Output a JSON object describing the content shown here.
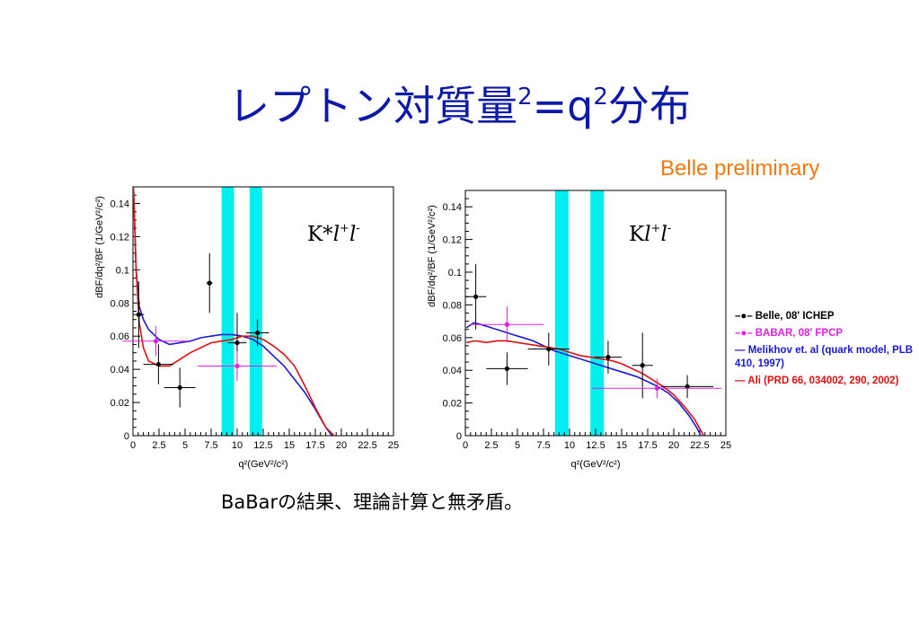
{
  "slide": {
    "title_main": "レプトン対質量",
    "title_sup1": "2",
    "title_eq": "=q",
    "title_sup2": "2",
    "title_tail": "分布",
    "preliminary": "Belle preliminary",
    "caption": "BaBarの結果、理論計算と無矛盾。"
  },
  "legend": [
    {
      "label": "Belle, 08' ICHEP",
      "color": "#000000",
      "marker": "dot"
    },
    {
      "label": "BABAR, 08' FPCP",
      "color": "#e020e0",
      "marker": "dot"
    },
    {
      "label": "Melikhov et. al (quark model, PLB 410, 1997)",
      "color": "#1a1ad0",
      "marker": "line"
    },
    {
      "label": "Ali (PRD 66, 034002, 290, 2002)",
      "color": "#e01010",
      "marker": "line"
    }
  ],
  "chart_data": [
    {
      "type": "scatter",
      "label_main": "K*",
      "label_l1": "l",
      "label_sup1": "+",
      "label_l2": "l",
      "label_sup2": "-",
      "xlabel": "q²(GeV²/c²)",
      "ylabel": "dBF/dq²/BF (1/GeV²/c²)",
      "xlim": [
        0,
        25
      ],
      "ylim": [
        0,
        0.15
      ],
      "xticks": [
        "0",
        "2.5",
        "5",
        "7.5",
        "10",
        "12.5",
        "15",
        "17.5",
        "20",
        "22.5",
        "25"
      ],
      "yticks": [
        "0",
        "0.02",
        "0.04",
        "0.06",
        "0.08",
        "0.1",
        "0.12",
        "0.14"
      ],
      "vetoes": [
        [
          8.5,
          9.7
        ],
        [
          11.2,
          12.4
        ]
      ],
      "series": [
        {
          "name": "Belle, 08' ICHEP",
          "color": "#000000",
          "points": [
            [
              0.55,
              0.073,
              0.5,
              0.02
            ],
            [
              2.45,
              0.043,
              1.45,
              0.012
            ],
            [
              4.5,
              0.029,
              1.5,
              0.012
            ],
            [
              7.35,
              0.092,
              0.3,
              0.018
            ],
            [
              10.0,
              0.056,
              0.9,
              0.018
            ],
            [
              11.95,
              0.062,
              1.1,
              0.008
            ]
          ]
        },
        {
          "name": "BABAR, 08' FPCP",
          "color": "#e020e0",
          "points": [
            [
              2.2,
              0.057,
              3.2,
              0.009
            ],
            [
              10.0,
              0.042,
              3.8,
              0.009
            ]
          ]
        }
      ],
      "curves": [
        {
          "name": "Melikhov",
          "color": "#1a1ad0",
          "points": [
            [
              0.05,
              0.16
            ],
            [
              0.3,
              0.1
            ],
            [
              0.6,
              0.078
            ],
            [
              1,
              0.07
            ],
            [
              1.5,
              0.064
            ],
            [
              2.5,
              0.058
            ],
            [
              3.5,
              0.055
            ],
            [
              4.5,
              0.056
            ],
            [
              5.5,
              0.057
            ],
            [
              6.5,
              0.059
            ],
            [
              7.5,
              0.06
            ],
            [
              8.5,
              0.061
            ],
            [
              9.5,
              0.061
            ],
            [
              10.5,
              0.06
            ],
            [
              11.5,
              0.058
            ],
            [
              12.5,
              0.054
            ],
            [
              13.5,
              0.048
            ],
            [
              14.5,
              0.042
            ],
            [
              15.5,
              0.034
            ],
            [
              16.5,
              0.026
            ],
            [
              17.5,
              0.016
            ],
            [
              18.5,
              0.005
            ],
            [
              19.1,
              0.0
            ]
          ]
        },
        {
          "name": "Ali",
          "color": "#e01010",
          "points": [
            [
              0.05,
              0.16
            ],
            [
              0.3,
              0.1
            ],
            [
              0.6,
              0.068
            ],
            [
              1,
              0.053
            ],
            [
              1.5,
              0.045
            ],
            [
              2.5,
              0.042
            ],
            [
              3.5,
              0.042
            ],
            [
              4.5,
              0.046
            ],
            [
              5.5,
              0.05
            ],
            [
              6.5,
              0.053
            ],
            [
              7.5,
              0.056
            ],
            [
              8.5,
              0.057
            ],
            [
              9.5,
              0.058
            ],
            [
              10.5,
              0.06
            ],
            [
              11.5,
              0.06
            ],
            [
              12.5,
              0.058
            ],
            [
              13.5,
              0.054
            ],
            [
              14.5,
              0.049
            ],
            [
              15.5,
              0.042
            ],
            [
              16.5,
              0.03
            ],
            [
              17.5,
              0.017
            ],
            [
              18.5,
              0.005
            ],
            [
              19.3,
              0.0
            ]
          ]
        }
      ]
    },
    {
      "type": "scatter",
      "label_main": "K",
      "label_l1": "l",
      "label_sup1": "+",
      "label_l2": "l",
      "label_sup2": "-",
      "xlabel": "q²(GeV²/c²)",
      "ylabel": "dBF/dq²/BF (1/GeV²/c²)",
      "xlim": [
        0,
        25
      ],
      "ylim": [
        0,
        0.15
      ],
      "xticks": [
        "0",
        "2.5",
        "5",
        "7.5",
        "10",
        "12.5",
        "15",
        "17.5",
        "20",
        "22.5",
        "25"
      ],
      "yticks": [
        "0",
        "0.02",
        "0.04",
        "0.06",
        "0.08",
        "0.1",
        "0.12",
        "0.14"
      ],
      "vetoes": [
        [
          8.6,
          9.9
        ],
        [
          12.0,
          13.3
        ]
      ],
      "series": [
        {
          "name": "Belle, 08' ICHEP",
          "color": "#000000",
          "points": [
            [
              1.0,
              0.085,
              1.0,
              0.02
            ],
            [
              4.0,
              0.041,
              2.0,
              0.01
            ],
            [
              8.0,
              0.053,
              2.0,
              0.01
            ],
            [
              13.7,
              0.048,
              1.3,
              0.01
            ],
            [
              17.0,
              0.043,
              1.0,
              0.02
            ],
            [
              21.3,
              0.03,
              2.5,
              0.007
            ]
          ]
        },
        {
          "name": "BABAR, 08' FPCP",
          "color": "#e020e0",
          "points": [
            [
              4.0,
              0.068,
              3.5,
              0.011
            ],
            [
              18.4,
              0.029,
              6.2,
              0.006
            ]
          ]
        }
      ],
      "curves": [
        {
          "name": "Melikhov",
          "color": "#1a1ad0",
          "points": [
            [
              0.1,
              0.066
            ],
            [
              0.8,
              0.069
            ],
            [
              1.5,
              0.068
            ],
            [
              2.5,
              0.066
            ],
            [
              3.5,
              0.064
            ],
            [
              4.5,
              0.062
            ],
            [
              5.5,
              0.06
            ],
            [
              6.5,
              0.058
            ],
            [
              7.5,
              0.055
            ],
            [
              8.5,
              0.052
            ],
            [
              9.5,
              0.05
            ],
            [
              10.5,
              0.048
            ],
            [
              11.5,
              0.046
            ],
            [
              12.5,
              0.044
            ],
            [
              13.5,
              0.042
            ],
            [
              14.5,
              0.04
            ],
            [
              15.5,
              0.038
            ],
            [
              16.5,
              0.036
            ],
            [
              17.5,
              0.033
            ],
            [
              18.5,
              0.03
            ],
            [
              19.5,
              0.026
            ],
            [
              20.5,
              0.02
            ],
            [
              21.5,
              0.012
            ],
            [
              22.2,
              0.005
            ],
            [
              22.6,
              0.0
            ]
          ]
        },
        {
          "name": "Ali",
          "color": "#e01010",
          "points": [
            [
              0.1,
              0.057
            ],
            [
              1,
              0.058
            ],
            [
              2,
              0.057
            ],
            [
              3,
              0.058
            ],
            [
              4,
              0.058
            ],
            [
              5,
              0.057
            ],
            [
              6,
              0.056
            ],
            [
              7,
              0.055
            ],
            [
              8,
              0.054
            ],
            [
              9,
              0.053
            ],
            [
              10,
              0.051
            ],
            [
              11,
              0.049
            ],
            [
              12,
              0.048
            ],
            [
              13,
              0.047
            ],
            [
              14,
              0.046
            ],
            [
              15,
              0.044
            ],
            [
              16,
              0.041
            ],
            [
              17,
              0.038
            ],
            [
              18,
              0.034
            ],
            [
              19,
              0.03
            ],
            [
              20,
              0.025
            ],
            [
              21,
              0.018
            ],
            [
              22,
              0.01
            ],
            [
              22.6,
              0.003
            ],
            [
              22.9,
              0.0
            ]
          ]
        }
      ]
    }
  ]
}
